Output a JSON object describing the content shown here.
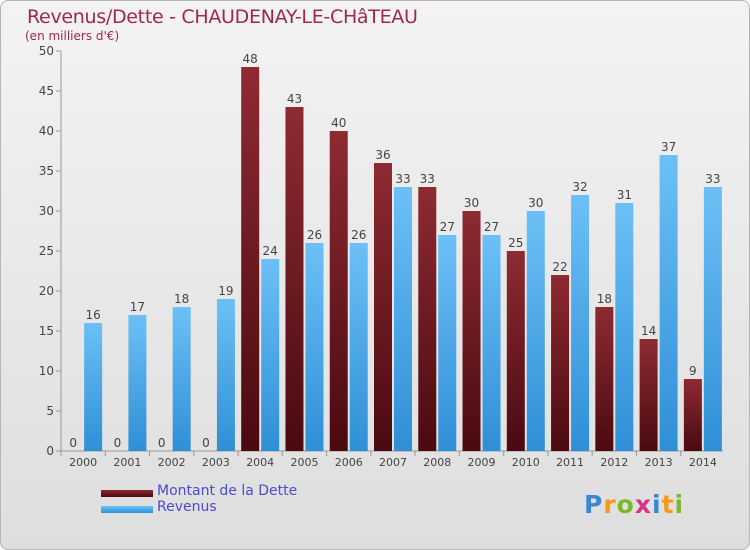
{
  "header": {
    "title": "Revenus/Dette - CHAUDENAY-LE-CHâTEAU",
    "subtitle": "(en milliers d'€)"
  },
  "legend": {
    "debt_label": "Montant de la Dette",
    "revenue_label": "Revenus"
  },
  "logo": {
    "letters": [
      "P",
      "r",
      "o",
      "x",
      "i",
      "t",
      "i"
    ],
    "colors": [
      "#3b86d4",
      "#f29a1a",
      "#7ab82e",
      "#d63384",
      "#3b86d4",
      "#f29a1a",
      "#7ab82e"
    ]
  },
  "colors": {
    "debt_top": "#8e2a32",
    "debt_bottom": "#4a0a10",
    "revenue_top": "#6cc0f6",
    "revenue_bottom": "#2f8fd6",
    "title": "#a0284a",
    "legend_text": "#4a4cd0"
  },
  "chart_data": {
    "type": "bar",
    "categories": [
      "2000",
      "2001",
      "2002",
      "2003",
      "2004",
      "2005",
      "2006",
      "2007",
      "2008",
      "2009",
      "2010",
      "2011",
      "2012",
      "2013",
      "2014"
    ],
    "series": [
      {
        "name": "Montant de la Dette",
        "values": [
          0,
          0,
          0,
          0,
          48,
          43,
          40,
          36,
          33,
          30,
          25,
          22,
          18,
          14,
          9
        ]
      },
      {
        "name": "Revenus",
        "values": [
          16,
          17,
          18,
          19,
          24,
          26,
          26,
          33,
          27,
          27,
          30,
          32,
          31,
          37,
          33
        ]
      }
    ],
    "y_ticks": [
      0,
      5,
      10,
      15,
      20,
      25,
      30,
      35,
      40,
      45,
      50
    ],
    "ylim": [
      0,
      50
    ],
    "grid": false,
    "legend_position": "bottom-left"
  }
}
